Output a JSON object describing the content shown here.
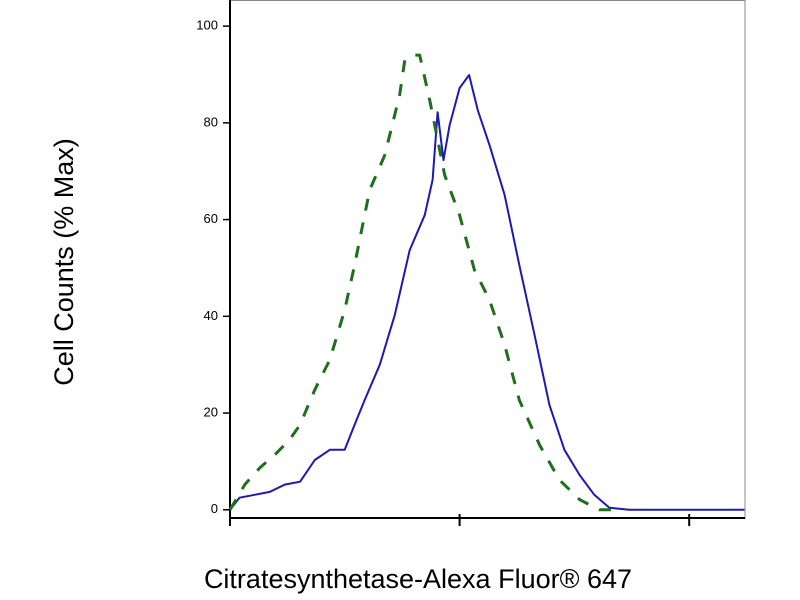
{
  "chart_data": {
    "type": "line",
    "x_label": "Citratesynthetase-Alexa Fluor® 647",
    "y_label": "Cell Counts (% Max)",
    "xscale": "log",
    "xlim": [
      1,
      175
    ],
    "xticks": [
      1,
      10,
      100
    ],
    "xtick_labels": false,
    "ylim": [
      -1.7,
      105.4
    ],
    "yticks": [
      0,
      20,
      40,
      60,
      80,
      100
    ],
    "series": [
      {
        "color": "#1a1ab4",
        "dash": false,
        "x": [
          1,
          1.1,
          1.28,
          1.49,
          1.73,
          2.02,
          2.34,
          2.72,
          3.16,
          3.49,
          3.86,
          4.49,
          5.22,
          6.06,
          7.05,
          7.63,
          8.02,
          8.51,
          9.05,
          10,
          11,
          12,
          13.5,
          15.7,
          18.2,
          21.2,
          24.6,
          28.6,
          33.3,
          38.6,
          44.9,
          54.8,
          110,
          174
        ],
        "values": [
          0,
          2.5,
          3.1,
          3.7,
          5.2,
          5.8,
          10.3,
          12.4,
          12.4,
          17.6,
          22.7,
          30,
          40.3,
          53.7,
          60.9,
          68.2,
          82.2,
          72.3,
          79.5,
          87.2,
          89.9,
          82.6,
          75.4,
          65.1,
          50.6,
          36.2,
          21.7,
          12.4,
          7.2,
          3.1,
          0.4,
          0,
          0,
          0
        ]
      },
      {
        "color": "#1e6e1e",
        "dash": true,
        "x": [
          1,
          1.16,
          1.35,
          1.57,
          1.82,
          2.02,
          2.34,
          2.72,
          3.16,
          3.49,
          4.06,
          4.72,
          5.48,
          5.77,
          6.37,
          6.7,
          7.41,
          8.61,
          10,
          11.6,
          13.5,
          15.7,
          18.2,
          22.3,
          27.2,
          33.3,
          40.6,
          49.7
        ],
        "values": [
          0,
          5.2,
          8.7,
          11.4,
          14.5,
          17.6,
          24.8,
          31,
          41.3,
          50.6,
          66.1,
          73.3,
          85.7,
          93,
          94,
          94,
          84.7,
          69.2,
          60.9,
          49.6,
          43.4,
          34.1,
          22.7,
          13.4,
          6.2,
          2.1,
          0,
          0
        ]
      }
    ]
  }
}
